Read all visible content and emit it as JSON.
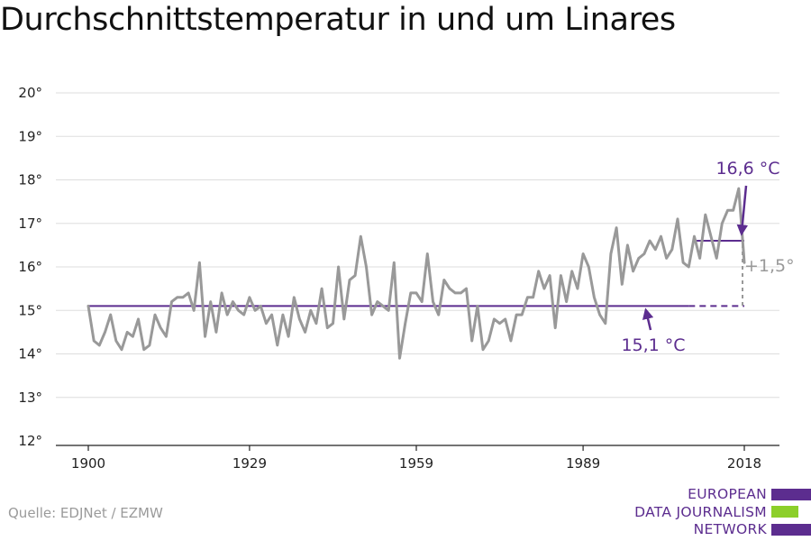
{
  "title": "Durchschnittstemperatur in und um Linares",
  "source": "Quelle: EDJNet / EZMW",
  "logo": {
    "lines": [
      "EUROPEAN",
      "DATA JOURNALISM",
      "NETWORK"
    ],
    "colors": [
      "#5c2d8f",
      "#8ccf2a",
      "#5c2d8f"
    ]
  },
  "colors": {
    "series": "#999999",
    "accent": "#5c2d8f",
    "grid": "#dddddd",
    "axis": "#222222",
    "delta": "#999999"
  },
  "chart_data": {
    "type": "line",
    "title": "Durchschnittstemperatur in und um Linares",
    "xlabel": "",
    "ylabel": "",
    "xlim": [
      1896,
      2020
    ],
    "ylim": [
      12,
      20
    ],
    "x_ticks": [
      1900,
      1929,
      1959,
      1989,
      2018
    ],
    "y_ticks": [
      12,
      13,
      14,
      15,
      16,
      17,
      18,
      19,
      20
    ],
    "y_tick_labels": [
      "12°",
      "13°",
      "14°",
      "15°",
      "16°",
      "17°",
      "18°",
      "19°",
      "20°"
    ],
    "grid": true,
    "series": [
      {
        "x": [
          1900,
          1901,
          1902,
          1903,
          1904,
          1905,
          1906,
          1907,
          1908,
          1909,
          1910,
          1911,
          1912,
          1913,
          1914,
          1915,
          1916,
          1917,
          1918,
          1919,
          1920,
          1921,
          1922,
          1923,
          1924,
          1925,
          1926,
          1927,
          1928,
          1929,
          1930,
          1931,
          1932,
          1933,
          1934,
          1935,
          1936,
          1937,
          1938,
          1939,
          1940,
          1941,
          1942,
          1943,
          1944,
          1945,
          1946,
          1947,
          1948,
          1949,
          1950,
          1951,
          1952,
          1953,
          1954,
          1955,
          1956,
          1957,
          1958,
          1959,
          1960,
          1961,
          1962,
          1963,
          1964,
          1965,
          1966,
          1967,
          1968,
          1969,
          1970,
          1971,
          1972,
          1973,
          1974,
          1975,
          1976,
          1977,
          1978,
          1979,
          1980,
          1981,
          1982,
          1983,
          1984,
          1985,
          1986,
          1987,
          1988,
          1989,
          1990,
          1991,
          1992,
          1993,
          1994,
          1995,
          1996,
          1997,
          1998,
          1999,
          2000,
          2001,
          2002,
          2003,
          2004,
          2005,
          2006,
          2007,
          2008,
          2009,
          2010,
          2011,
          2012,
          2013,
          2014,
          2015,
          2016,
          2017,
          2018
        ],
        "values": [
          15.1,
          14.3,
          14.2,
          14.5,
          14.9,
          14.3,
          14.1,
          14.5,
          14.4,
          14.8,
          14.1,
          14.2,
          14.9,
          14.6,
          14.4,
          15.2,
          15.3,
          15.3,
          15.4,
          15.0,
          16.1,
          14.4,
          15.2,
          14.5,
          15.4,
          14.9,
          15.2,
          15.0,
          14.9,
          15.3,
          15.0,
          15.1,
          14.7,
          14.9,
          14.2,
          14.9,
          14.4,
          15.3,
          14.8,
          14.5,
          15.0,
          14.7,
          15.5,
          14.6,
          14.7,
          16.0,
          14.8,
          15.7,
          15.8,
          16.7,
          16.0,
          14.9,
          15.2,
          15.1,
          15.0,
          16.1,
          13.9,
          14.7,
          15.4,
          15.4,
          15.2,
          16.3,
          15.2,
          14.9,
          15.7,
          15.5,
          15.4,
          15.4,
          15.5,
          14.3,
          15.1,
          14.1,
          14.3,
          14.8,
          14.7,
          14.8,
          14.3,
          14.9,
          14.9,
          15.3,
          15.3,
          15.9,
          15.5,
          15.8,
          14.6,
          15.8,
          15.2,
          15.9,
          15.5,
          16.3,
          16.0,
          15.3,
          14.9,
          14.7,
          16.3,
          16.9,
          15.6,
          16.5,
          15.9,
          16.2,
          16.3,
          16.6,
          16.4,
          16.7,
          16.2,
          16.4,
          17.1,
          16.1,
          16.0,
          16.7,
          16.2,
          17.2,
          16.7,
          16.2,
          17.0,
          17.3,
          17.3,
          17.8,
          16.1
        ]
      }
    ],
    "reference_lines": [
      {
        "value": 15.1,
        "from": 1900,
        "to": 2008,
        "dashed_to": 2018
      },
      {
        "value": 16.6,
        "from": 2009,
        "to": 2018
      }
    ],
    "annotations": [
      {
        "text": "16,6 °C"
      },
      {
        "text": "15,1 °C"
      },
      {
        "text": "+1,5°"
      }
    ]
  }
}
